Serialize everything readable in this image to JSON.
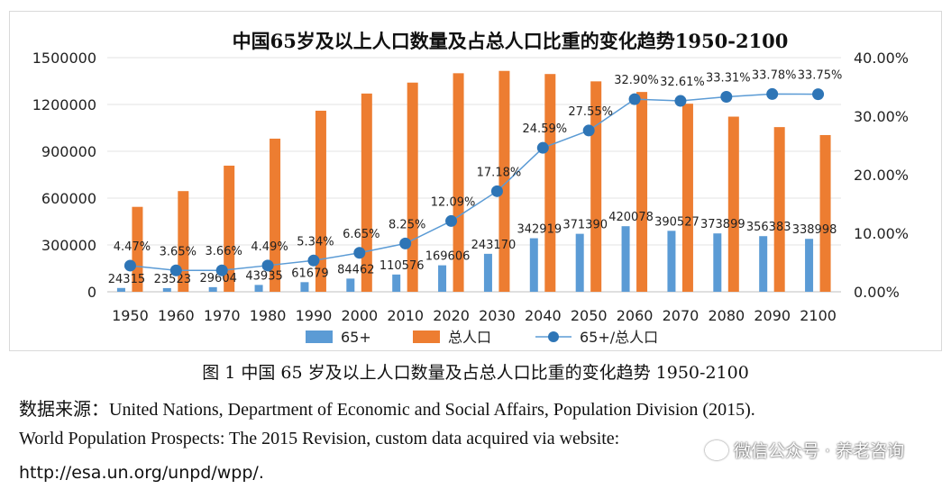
{
  "chart_data": {
    "type": "bar+line",
    "title": "中国65岁及以上人口数量及占总人口比重的变化趋势1950-2100",
    "categories": [
      "1950",
      "1960",
      "1970",
      "1980",
      "1990",
      "2000",
      "2010",
      "2020",
      "2030",
      "2040",
      "2050",
      "2060",
      "2070",
      "2080",
      "2090",
      "2100"
    ],
    "series": [
      {
        "name": "65+",
        "type": "bar",
        "axis": "left",
        "color": "#5b9bd5",
        "values": [
          24315,
          23523,
          29604,
          43935,
          61679,
          84462,
          110576,
          169606,
          243170,
          342919,
          371390,
          420078,
          390527,
          373899,
          356383,
          338998
        ],
        "labels": [
          "24315",
          "23523",
          "29604",
          "43935",
          "61679",
          "84462",
          "110576",
          "169606",
          "243170",
          "342919",
          "371390",
          "420078",
          "390527",
          "373899",
          "356383",
          "338998"
        ]
      },
      {
        "name": "总人口",
        "type": "bar",
        "axis": "left",
        "color": "#ed7d31",
        "values": [
          544000,
          645000,
          808000,
          981000,
          1160000,
          1270000,
          1340000,
          1400000,
          1415000,
          1395000,
          1348000,
          1280000,
          1205000,
          1122000,
          1055000,
          1004000
        ]
      },
      {
        "name": "65+/总人口",
        "type": "line",
        "axis": "right",
        "color": "#2e75b6",
        "values": [
          4.47,
          3.65,
          3.66,
          4.49,
          5.34,
          6.65,
          8.25,
          12.09,
          17.18,
          24.59,
          27.55,
          32.9,
          32.61,
          33.31,
          33.78,
          33.75
        ],
        "labels": [
          "4.47%",
          "3.65%",
          "3.66%",
          "4.49%",
          "5.34%",
          "6.65%",
          "8.25%",
          "12.09%",
          "17.18%",
          "24.59%",
          "27.55%",
          "32.90%",
          "32.61%",
          "33.31%",
          "33.78%",
          "33.75%"
        ]
      }
    ],
    "y_left": {
      "ylim": [
        0,
        1500000
      ],
      "ticks": [
        "0",
        "300000",
        "600000",
        "900000",
        "1200000",
        "1500000"
      ],
      "tick_values": [
        0,
        300000,
        600000,
        900000,
        1200000,
        1500000
      ]
    },
    "y_right": {
      "ylim": [
        0,
        40
      ],
      "ticks": [
        "0.00%",
        "10.00%",
        "20.00%",
        "30.00%",
        "40.00%"
      ],
      "tick_values": [
        0,
        10,
        20,
        30,
        40
      ]
    },
    "grid": true,
    "legend_position": "bottom"
  },
  "caption": "图 1  中国 65 岁及以上人口数量及占总人口比重的变化趋势 1950-2100",
  "source": {
    "line1": "数据来源：United Nations, Department of Economic and Social Affairs, Population Division (2015).",
    "line2": "World Population Prospects: The 2015 Revision, custom data acquired via website:",
    "line3": "http://esa.un.org/unpd/wpp/."
  },
  "watermark": "微信公众号 · 养老咨询",
  "watermark_icon": "wechat-icon"
}
